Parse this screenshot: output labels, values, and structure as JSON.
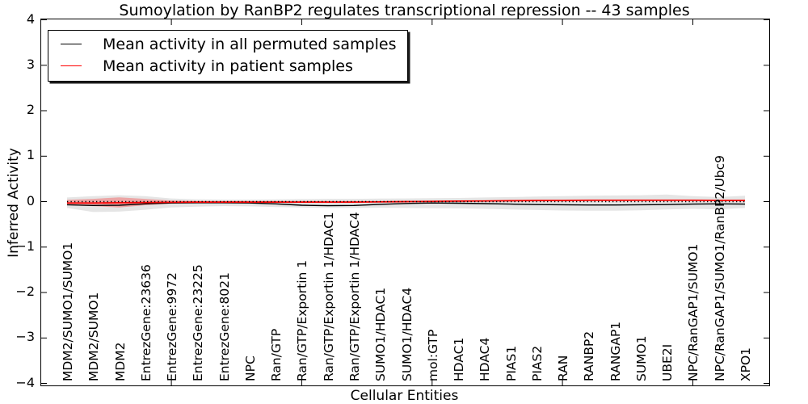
{
  "figure": {
    "title": "Sumoylation by RanBP2 regulates transcriptional repression -- 43 samples",
    "xlabel": "Cellular Entities",
    "ylabel": "Inferred Activity"
  },
  "legend": {
    "items": [
      {
        "label": "Mean activity in all permuted samples",
        "color": "#000000"
      },
      {
        "label": "Mean activity in patient samples",
        "color": "#ff0000"
      }
    ]
  },
  "chart_data": {
    "type": "line",
    "title": "Sumoylation by RanBP2 regulates transcriptional repression -- 43 samples",
    "xlabel": "Cellular Entities",
    "ylabel": "Inferred Activity",
    "ylim": [
      -4,
      4
    ],
    "grid": false,
    "legend_position": "upper left",
    "yticks": [
      {
        "value": 4,
        "label": "4"
      },
      {
        "value": 3,
        "label": "3"
      },
      {
        "value": 2,
        "label": "2"
      },
      {
        "value": 1,
        "label": "1"
      },
      {
        "value": 0,
        "label": "0"
      },
      {
        "value": -1,
        "label": "−1"
      },
      {
        "value": -2,
        "label": "−2"
      },
      {
        "value": -3,
        "label": "−3"
      },
      {
        "value": -4,
        "label": "−4"
      }
    ],
    "categories": [
      "MDM2/SUMO1/SUMO1",
      "MDM2/SUMO1",
      "MDM2",
      "EntrezGene:23636",
      "EntrezGene:9972",
      "EntrezGene:23225",
      "EntrezGene:8021",
      "NPC",
      "Ran/GTP",
      "Ran/GTP/Exportin 1",
      "Ran/GTP/Exportin 1/HDAC1",
      "Ran/GTP/Exportin 1/HDAC4",
      "SUMO1/HDAC1",
      "SUMO1/HDAC4",
      "mol:GTP",
      "HDAC1",
      "HDAC4",
      "PIAS1",
      "PIAS2",
      "RAN",
      "RANBP2",
      "RANGAP1",
      "SUMO1",
      "UBE2I",
      "NPC/RanGAP1/SUMO1",
      "NPC/RanGAP1/SUMO1/RanBP2/Ubc9",
      "XPO1"
    ],
    "major_tick_indices": [
      4,
      9,
      14,
      19,
      24
    ],
    "series": [
      {
        "name": "Mean activity in all permuted samples",
        "color": "#000000",
        "style": "solid",
        "width": 1.4,
        "values": [
          -0.07,
          -0.085,
          -0.08,
          -0.05,
          -0.03,
          -0.025,
          -0.025,
          -0.03,
          -0.05,
          -0.08,
          -0.09,
          -0.085,
          -0.06,
          -0.04,
          -0.03,
          -0.035,
          -0.045,
          -0.055,
          -0.065,
          -0.07,
          -0.075,
          -0.075,
          -0.07,
          -0.065,
          -0.055,
          -0.05,
          -0.055
        ]
      },
      {
        "name": "Mean activity in patient samples",
        "color": "#ff0000",
        "style": "solid",
        "width": 1.7,
        "values": [
          -0.03,
          -0.03,
          -0.025,
          -0.02,
          -0.015,
          -0.01,
          -0.01,
          -0.01,
          -0.01,
          -0.01,
          -0.01,
          -0.01,
          -0.005,
          0,
          0.005,
          0.01,
          0.015,
          0.02,
          0.025,
          0.025,
          0.03,
          0.03,
          0.03,
          0.03,
          0.03,
          0.025,
          0.025
        ]
      }
    ],
    "reference_line": {
      "name": "zero-line",
      "y": 0,
      "color": "#000000",
      "style": "dotted",
      "width": 1.6
    },
    "bands": [
      {
        "name": "permuted-samples-std-band",
        "color": "#000000",
        "opacity": 0.1,
        "upper": [
          0.09,
          0.12,
          0.14,
          0.12,
          0.07,
          0.05,
          0.045,
          0.045,
          0.05,
          0.055,
          0.06,
          0.06,
          0.065,
          0.07,
          0.075,
          0.08,
          0.09,
          0.1,
          0.11,
          0.12,
          0.13,
          0.135,
          0.14,
          0.155,
          0.12,
          0.1,
          0.13
        ],
        "lower": [
          -0.14,
          -0.23,
          -0.22,
          -0.18,
          -0.13,
          -0.11,
          -0.1,
          -0.105,
          -0.12,
          -0.13,
          -0.14,
          -0.14,
          -0.135,
          -0.14,
          -0.145,
          -0.15,
          -0.16,
          -0.175,
          -0.185,
          -0.195,
          -0.2,
          -0.2,
          -0.19,
          -0.175,
          -0.16,
          -0.17,
          -0.14
        ]
      },
      {
        "name": "patient-samples-std-band",
        "color": "#ff0000",
        "opacity": 0.28,
        "upper": [
          0.04,
          0.06,
          0.095,
          0.06,
          0.025,
          0.015,
          0.012,
          0.012,
          0.012,
          0.012,
          0.012,
          0.012,
          0.012,
          0.015,
          0.018,
          0.02,
          0.025,
          0.03,
          0.035,
          0.035,
          0.04,
          0.04,
          0.04,
          0.04,
          0.04,
          0.035,
          0.04
        ],
        "lower": [
          -0.08,
          -0.1,
          -0.13,
          -0.08,
          -0.045,
          -0.03,
          -0.028,
          -0.028,
          -0.028,
          -0.028,
          -0.028,
          -0.028,
          -0.025,
          -0.02,
          -0.012,
          -0.008,
          -0.005,
          0,
          0.005,
          0.005,
          0.01,
          0.01,
          0.015,
          0.015,
          0.015,
          0.01,
          0.005
        ]
      }
    ]
  }
}
